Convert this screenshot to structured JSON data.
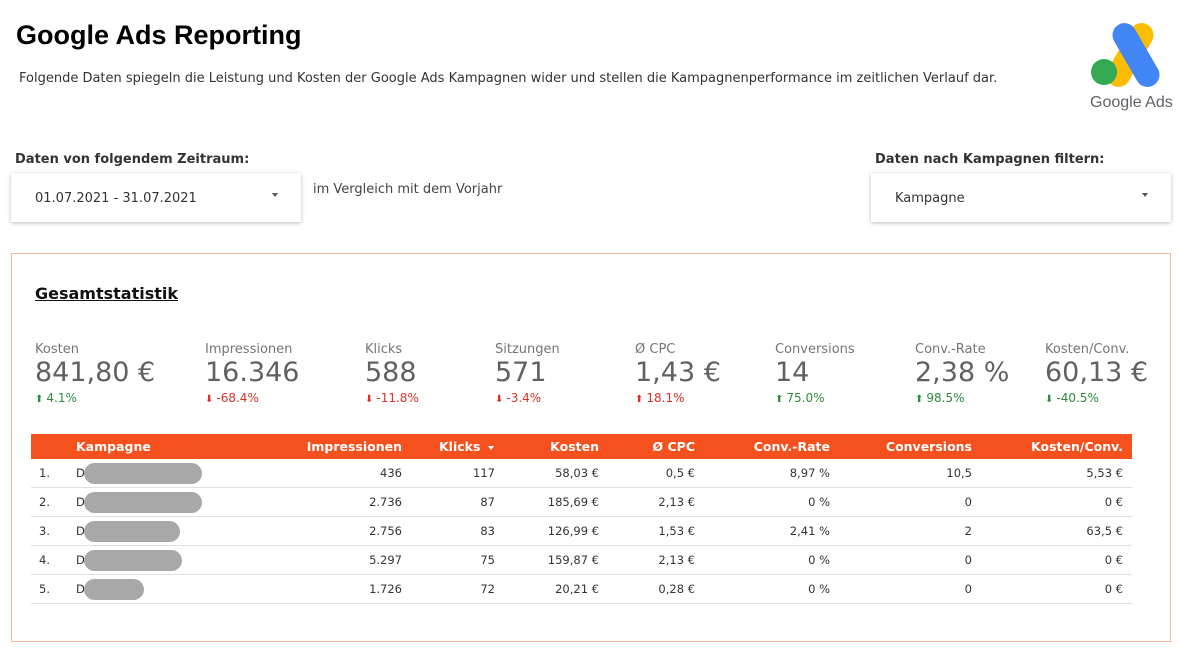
{
  "header": {
    "title": "Google Ads Reporting",
    "subtitle": "Folgende Daten spiegeln die Leistung und Kosten der Google Ads Kampagnen wider und stellen die Kampagnenperformance im zeitlichen Verlauf dar.",
    "logo_text": "Google Ads"
  },
  "filters": {
    "date_label": "Daten von folgendem Zeitraum:",
    "date_value": "01.07.2021 - 31.07.2021",
    "compare_text": "im Vergleich mit dem Vorjahr",
    "campaign_label": "Daten nach Kampagnen filtern:",
    "campaign_value": "Kampagne"
  },
  "panel": {
    "title": "Gesamtstatistik",
    "kpis": [
      {
        "label": "Kosten",
        "value": "841,80 €",
        "delta": "4.1%",
        "trend": "up",
        "good": true
      },
      {
        "label": "Impressionen",
        "value": "16.346",
        "delta": "-68.4%",
        "trend": "down",
        "good": false
      },
      {
        "label": "Klicks",
        "value": "588",
        "delta": "-11.8%",
        "trend": "down",
        "good": false
      },
      {
        "label": "Sitzungen",
        "value": "571",
        "delta": "-3.4%",
        "trend": "down",
        "good": false
      },
      {
        "label": "Ø CPC",
        "value": "1,43 €",
        "delta": "18.1%",
        "trend": "up",
        "good": false
      },
      {
        "label": "Conversions",
        "value": "14",
        "delta": "75.0%",
        "trend": "up",
        "good": true
      },
      {
        "label": "Conv.-Rate",
        "value": "2,38 %",
        "delta": "98.5%",
        "trend": "up",
        "good": true
      },
      {
        "label": "Kosten/Conv.",
        "value": "60,13 €",
        "delta": "-40.5%",
        "trend": "down",
        "good": true
      }
    ],
    "table": {
      "columns": [
        "Kampagne",
        "Impressionen",
        "Klicks",
        "Kosten",
        "Ø CPC",
        "Conv.-Rate",
        "Conversions",
        "Kosten/Conv."
      ],
      "rows": [
        {
          "index": "1.",
          "campaign": "D",
          "impressions": "436",
          "clicks": "117",
          "cost": "58,03 €",
          "cpc": "0,5 €",
          "conv_rate": "8,97 %",
          "conversions": "10,5",
          "cost_per_conv": "5,53 €"
        },
        {
          "index": "2.",
          "campaign": "D",
          "impressions": "2.736",
          "clicks": "87",
          "cost": "185,69 €",
          "cpc": "2,13 €",
          "conv_rate": "0 %",
          "conversions": "0",
          "cost_per_conv": "0 €"
        },
        {
          "index": "3.",
          "campaign": "D",
          "impressions": "2.756",
          "clicks": "83",
          "cost": "126,99 €",
          "cpc": "1,53 €",
          "conv_rate": "2,41 %",
          "conversions": "2",
          "cost_per_conv": "63,5 €"
        },
        {
          "index": "4.",
          "campaign": "D",
          "impressions": "5.297",
          "clicks": "75",
          "cost": "159,87 €",
          "cpc": "2,13 €",
          "conv_rate": "0 %",
          "conversions": "0",
          "cost_per_conv": "0 €"
        },
        {
          "index": "5.",
          "campaign": "D",
          "impressions": "1.726",
          "clicks": "72",
          "cost": "20,21 €",
          "cpc": "0,28 €",
          "conv_rate": "0 %",
          "conversions": "0",
          "cost_per_conv": "0 €"
        }
      ]
    }
  },
  "colors": {
    "table_header": "#f4511e",
    "panel_border": "#f3b79c",
    "positive": "#2e8b3a",
    "negative": "#d93025"
  }
}
